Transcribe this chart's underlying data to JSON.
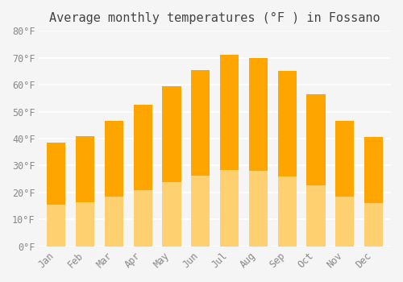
{
  "title": "Average monthly temperatures (°F ) in Fossano",
  "months": [
    "Jan",
    "Feb",
    "Mar",
    "Apr",
    "May",
    "Jun",
    "Jul",
    "Aug",
    "Sep",
    "Oct",
    "Nov",
    "Dec"
  ],
  "values": [
    38.5,
    41.0,
    46.5,
    52.5,
    59.5,
    65.5,
    71.0,
    70.0,
    65.0,
    56.5,
    46.5,
    40.5
  ],
  "bar_color_top": "#FFA500",
  "bar_color_bottom": "#FFD070",
  "ylim": [
    0,
    80
  ],
  "yticks": [
    0,
    10,
    20,
    30,
    40,
    50,
    60,
    70,
    80
  ],
  "ytick_labels": [
    "0°F",
    "10°F",
    "20°F",
    "30°F",
    "40°F",
    "50°F",
    "60°F",
    "70°F",
    "80°F"
  ],
  "background_color": "#f5f5f5",
  "grid_color": "#ffffff",
  "title_fontsize": 11,
  "tick_fontsize": 8.5,
  "font_family": "monospace"
}
